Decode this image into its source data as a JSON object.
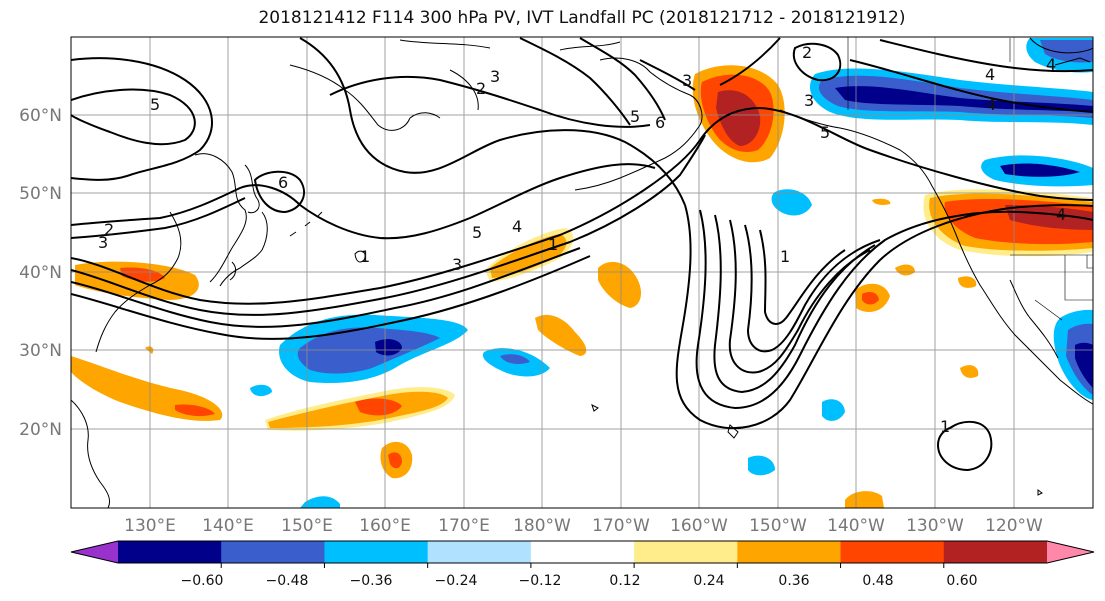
{
  "title": "2018121412 F114 300 hPa PV, IVT Landfall PC (2018121712 - 2018121912)",
  "lat_labels": [
    "60°N",
    "50°N",
    "40°N",
    "30°N",
    "20°N"
  ],
  "lon_labels": [
    "130°E",
    "140°E",
    "150°E",
    "160°E",
    "170°E",
    "180°W",
    "170°W",
    "160°W",
    "150°W",
    "140°W",
    "130°W",
    "120°W"
  ],
  "colorbar": {
    "ticks": [
      "−0.60",
      "−0.48",
      "−0.36",
      "−0.24",
      "−0.12",
      "0.12",
      "0.24",
      "0.36",
      "0.48",
      "0.60"
    ],
    "colors": [
      "#9932cc",
      "#00008b",
      "#3a5fcd",
      "#00bfff",
      "#b0e2ff",
      "#ffffff",
      "#ffec8b",
      "#ffa500",
      "#ff4500",
      "#b22222",
      "#ff88aa"
    ]
  },
  "contour_labels": [
    "5",
    "3",
    "2",
    "6",
    "2",
    "3",
    "5",
    "4",
    "1",
    "3",
    "6",
    "5",
    "2",
    "3",
    "5",
    "4",
    "4",
    "1",
    "1",
    "3",
    "4",
    "1",
    "4"
  ]
}
